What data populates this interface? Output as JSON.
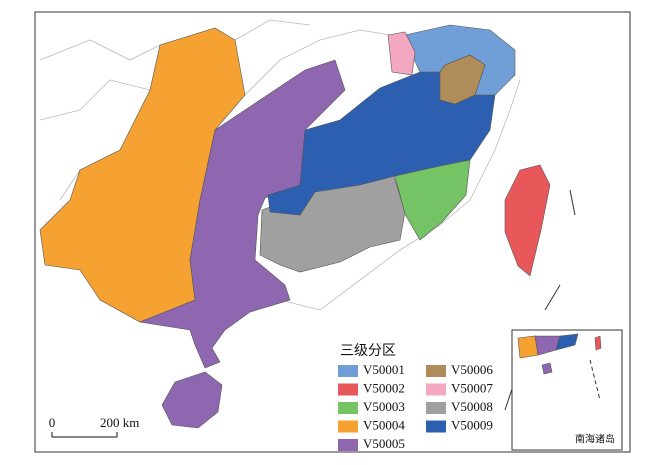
{
  "legend": {
    "title": "三级分区",
    "items": [
      {
        "label": "V50001",
        "color": "#6f9fd6"
      },
      {
        "label": "V50002",
        "color": "#e8585a"
      },
      {
        "label": "V50003",
        "color": "#74c365"
      },
      {
        "label": "V50004",
        "color": "#f5a233"
      },
      {
        "label": "V50005",
        "color": "#8f67b0"
      },
      {
        "label": "V50006",
        "color": "#b08c5b"
      },
      {
        "label": "V50007",
        "color": "#f4a7c0"
      },
      {
        "label": "V50008",
        "color": "#a0a0a0"
      },
      {
        "label": "V50009",
        "color": "#2c5fb0"
      }
    ]
  },
  "scale_bar": {
    "start": "0",
    "end": "200 km"
  },
  "inset": {
    "label": "南海诸岛"
  }
}
